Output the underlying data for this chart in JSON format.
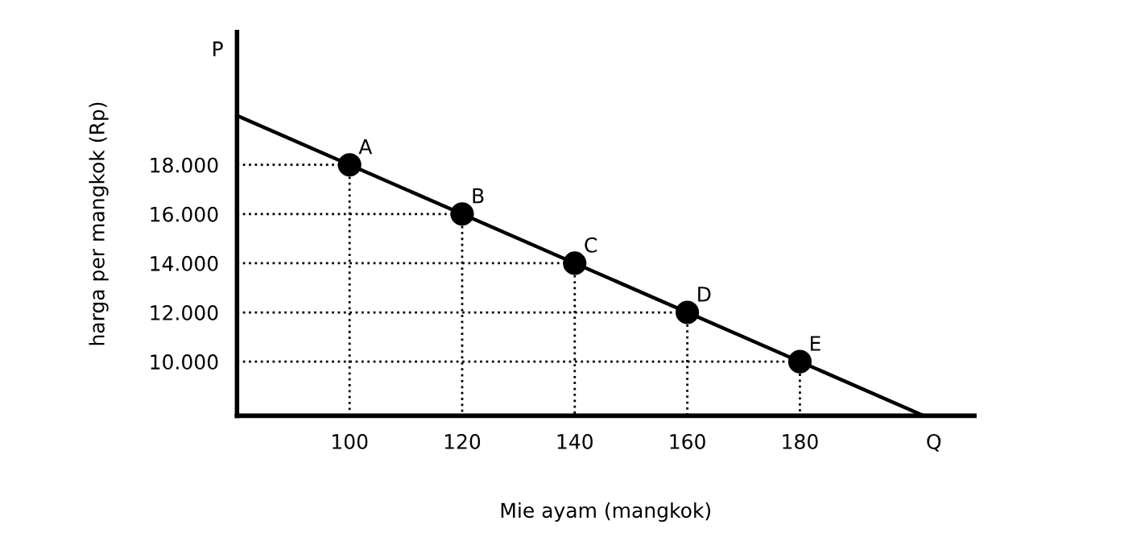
{
  "chart_data": {
    "type": "line",
    "xlabel": "Mie ayam (mangkok)",
    "ylabel": "harga per mangkok (Rp)",
    "xlim": [
      80,
      211
    ],
    "ylim": [
      7800,
      23400
    ],
    "xticks": [
      100,
      120,
      140,
      160,
      180
    ],
    "yticks": [
      {
        "value": 10000,
        "label": "10.000"
      },
      {
        "value": 12000,
        "label": "12.000"
      },
      {
        "value": 14000,
        "label": "14.000"
      },
      {
        "value": 16000,
        "label": "16.000"
      },
      {
        "value": 18000,
        "label": "18.000"
      }
    ],
    "grid": false,
    "legend": false,
    "series": [
      {
        "color": "#000000",
        "x": [
          80,
          202
        ],
        "values": [
          20000,
          7800
        ],
        "line_style": "solid",
        "marker": "none"
      },
      {
        "color": "#000000",
        "x": [
          80,
          100,
          100
        ],
        "values": [
          18000,
          18000,
          7800
        ],
        "line_style": "dotted",
        "marker": "none"
      },
      {
        "color": "#000000",
        "x": [
          80,
          120,
          120
        ],
        "values": [
          16000,
          16000,
          7800
        ],
        "line_style": "dotted",
        "marker": "none"
      },
      {
        "color": "#000000",
        "x": [
          80,
          140,
          140
        ],
        "values": [
          14000,
          14000,
          7800
        ],
        "line_style": "dotted",
        "marker": "none"
      },
      {
        "color": "#000000",
        "x": [
          80,
          160,
          160
        ],
        "values": [
          12000,
          12000,
          7800
        ],
        "line_style": "dotted",
        "marker": "none"
      },
      {
        "color": "#000000",
        "x": [
          80,
          180,
          180
        ],
        "values": [
          10000,
          10000,
          7800
        ],
        "line_style": "dotted",
        "marker": "none"
      },
      {
        "type": "scatter",
        "color": "#000000",
        "x": [
          100,
          120,
          140,
          160,
          180
        ],
        "values": [
          18000,
          16000,
          14000,
          12000,
          10000
        ],
        "marker": "circle"
      }
    ],
    "annotations": [
      {
        "text": "A",
        "x": 100,
        "y": 18000
      },
      {
        "text": "B",
        "x": 120,
        "y": 16000
      },
      {
        "text": "C",
        "x": 140,
        "y": 14000
      },
      {
        "text": "D",
        "x": 160,
        "y": 12000
      },
      {
        "text": "E",
        "x": 180,
        "y": 10000
      },
      "P",
      "Q"
    ]
  }
}
